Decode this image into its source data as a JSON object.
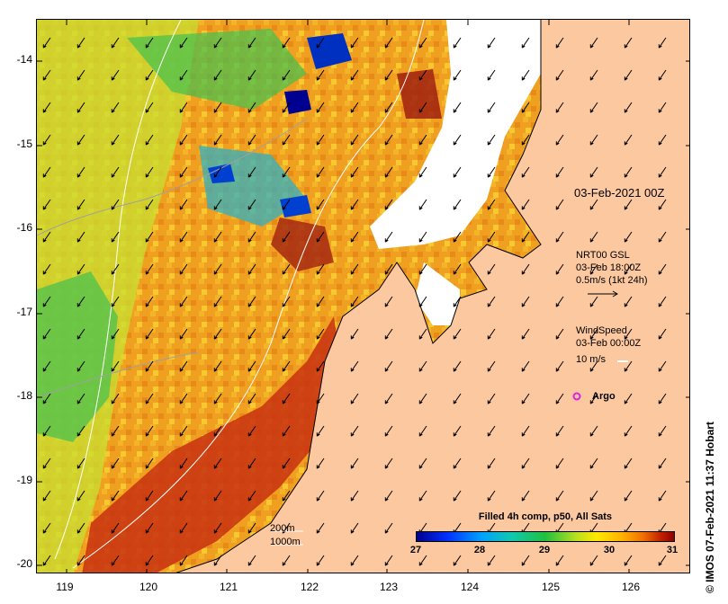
{
  "map": {
    "x_ticks": [
      "119",
      "120",
      "121",
      "122",
      "123",
      "124",
      "125",
      "126"
    ],
    "y_ticks": [
      "-14",
      "-15",
      "-16",
      "-17",
      "-18",
      "-19",
      "-20"
    ],
    "x_range": [
      118.65,
      126.75
    ],
    "y_range": [
      -20.1,
      -13.5
    ]
  },
  "annotations": {
    "date_main": "03-Feb-2021 00Z",
    "gsl_label": "NRT00 GSL",
    "gsl_time": "03-Feb 18:00Z",
    "gsl_scale": "0.5m/s (1kt 24h)",
    "wind_label": "WindSpeed",
    "wind_time": "03-Feb 00:00Z",
    "wind_scale": "10 m/s",
    "argo_label": "Argo",
    "depth_200": "200m",
    "depth_1000": "1000m",
    "credit": "© IMOS 07-Feb-2021 11:37 Hobart"
  },
  "colorbar": {
    "title": "Filled 4h comp, p50, All Sats",
    "ticks": [
      "27",
      "28",
      "29",
      "30",
      "31"
    ]
  },
  "colors": {
    "land": "#fcc8a0",
    "cloud": "#ffffff",
    "argo": "#e020e0"
  }
}
